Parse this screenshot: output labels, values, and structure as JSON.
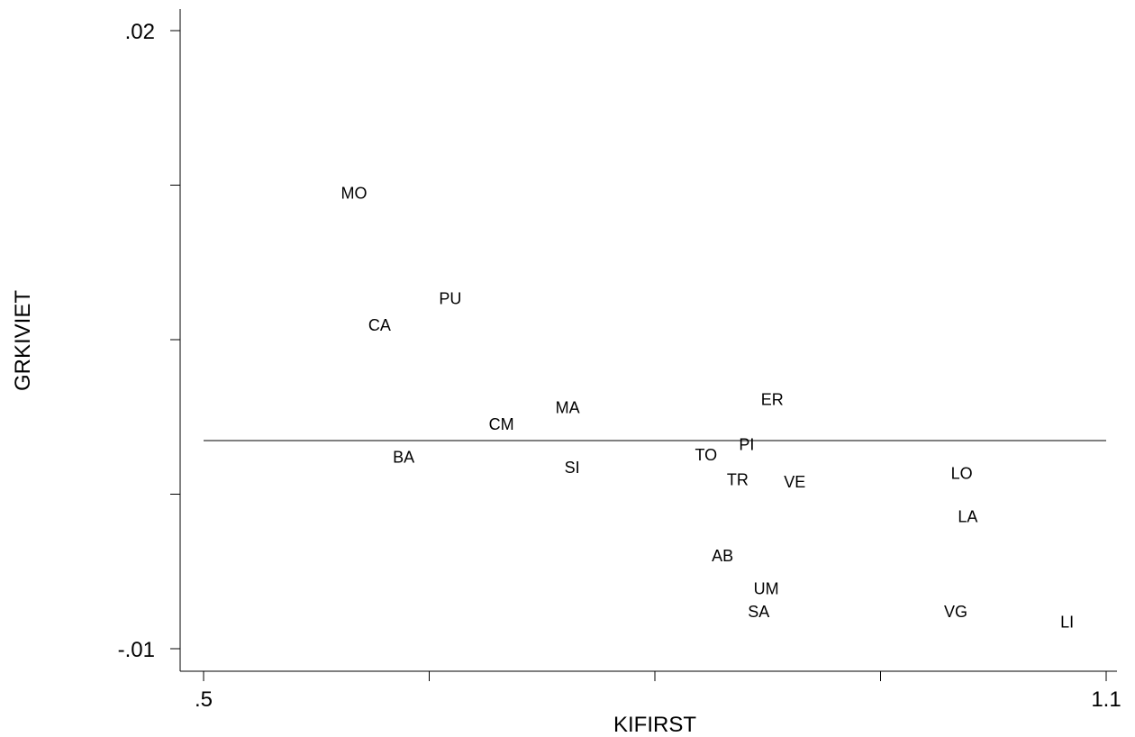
{
  "chart_data": {
    "type": "scatter",
    "title": "",
    "xlabel": "KIFIRST",
    "ylabel": "GRKIVIET",
    "xlim": [
      0.5,
      1.1
    ],
    "ylim": [
      -0.01,
      0.02
    ],
    "x_ticks": [
      0.5,
      0.65,
      0.8,
      0.95,
      1.1
    ],
    "x_tick_labels": [
      ".5",
      "",
      "",
      "",
      "1.1"
    ],
    "y_ticks": [
      -0.01,
      -0.0025,
      0.005,
      0.0125,
      0.02
    ],
    "y_tick_labels": [
      "-.01",
      "",
      "",
      "",
      ".02"
    ],
    "reference_line_y": 0.0001,
    "grid": false,
    "legend": "none",
    "points": [
      {
        "label": "MO",
        "x": 0.6,
        "y": 0.0121
      },
      {
        "label": "PU",
        "x": 0.664,
        "y": 0.007
      },
      {
        "label": "CA",
        "x": 0.617,
        "y": 0.0057
      },
      {
        "label": "ER",
        "x": 0.878,
        "y": 0.0021
      },
      {
        "label": "MA",
        "x": 0.742,
        "y": 0.0017
      },
      {
        "label": "CM",
        "x": 0.698,
        "y": 0.0009
      },
      {
        "label": "PI",
        "x": 0.861,
        "y": -0.0001
      },
      {
        "label": "TO",
        "x": 0.834,
        "y": -0.0006
      },
      {
        "label": "BA",
        "x": 0.633,
        "y": -0.0007
      },
      {
        "label": "SI",
        "x": 0.745,
        "y": -0.0012
      },
      {
        "label": "TR",
        "x": 0.855,
        "y": -0.0018
      },
      {
        "label": "VE",
        "x": 0.893,
        "y": -0.0019
      },
      {
        "label": "LO",
        "x": 1.004,
        "y": -0.0015
      },
      {
        "label": "LA",
        "x": 1.008,
        "y": -0.0036
      },
      {
        "label": "AB",
        "x": 0.845,
        "y": -0.0055
      },
      {
        "label": "UM",
        "x": 0.874,
        "y": -0.0071
      },
      {
        "label": "SA",
        "x": 0.869,
        "y": -0.0082
      },
      {
        "label": "VG",
        "x": 1.0,
        "y": -0.0082
      },
      {
        "label": "LI",
        "x": 1.074,
        "y": -0.0087
      }
    ]
  }
}
